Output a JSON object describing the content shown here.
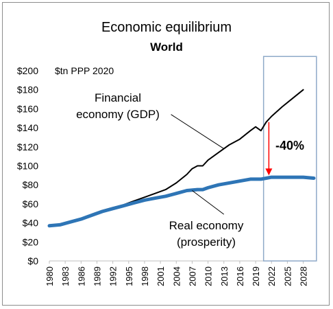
{
  "chart_data": {
    "type": "line",
    "title": "Economic equilibrium",
    "subtitle": "World",
    "unit_note": "$tn PPP 2020",
    "ylim": [
      0,
      200
    ],
    "y_ticks": [
      "$0",
      "$20",
      "$40",
      "$60",
      "$80",
      "$100",
      "$120",
      "$140",
      "$160",
      "$180",
      "$200"
    ],
    "y_tick_values": [
      0,
      20,
      40,
      60,
      80,
      100,
      120,
      140,
      160,
      180,
      200
    ],
    "x_ticks": [
      "1980",
      "1983",
      "1986",
      "1989",
      "1992",
      "1995",
      "1998",
      "2001",
      "2004",
      "2007",
      "2010",
      "2013",
      "2016",
      "2019",
      "2022",
      "2025",
      "2028"
    ],
    "x_tick_values": [
      1980,
      1983,
      1986,
      1989,
      1992,
      1995,
      1998,
      2001,
      2004,
      2007,
      2010,
      2013,
      2016,
      2019,
      2022,
      2025,
      2028
    ],
    "xlim": [
      1980,
      2030
    ],
    "series": [
      {
        "key": "gdp",
        "color": "#000000",
        "points": [
          [
            1980,
            37
          ],
          [
            1982,
            38
          ],
          [
            1984,
            41
          ],
          [
            1986,
            44
          ],
          [
            1988,
            49
          ],
          [
            1990,
            53
          ],
          [
            1992,
            56
          ],
          [
            1994,
            59
          ],
          [
            1996,
            63
          ],
          [
            1998,
            67
          ],
          [
            2000,
            71
          ],
          [
            2002,
            75
          ],
          [
            2004,
            82
          ],
          [
            2006,
            91
          ],
          [
            2007,
            97
          ],
          [
            2008,
            100
          ],
          [
            2009,
            100
          ],
          [
            2010,
            106
          ],
          [
            2012,
            114
          ],
          [
            2014,
            122
          ],
          [
            2016,
            128
          ],
          [
            2018,
            137
          ],
          [
            2019,
            141
          ],
          [
            2020,
            137
          ],
          [
            2021,
            146
          ],
          [
            2022,
            152
          ],
          [
            2024,
            162
          ],
          [
            2026,
            171
          ],
          [
            2028,
            180
          ]
        ]
      },
      {
        "key": "real",
        "color": "#2e75b6",
        "points": [
          [
            1980,
            37
          ],
          [
            1982,
            38
          ],
          [
            1984,
            41
          ],
          [
            1986,
            44
          ],
          [
            1988,
            48
          ],
          [
            1990,
            52
          ],
          [
            1992,
            55
          ],
          [
            1994,
            58
          ],
          [
            1996,
            61
          ],
          [
            1998,
            64
          ],
          [
            2000,
            66
          ],
          [
            2002,
            68
          ],
          [
            2004,
            71
          ],
          [
            2006,
            74
          ],
          [
            2008,
            75
          ],
          [
            2009,
            75
          ],
          [
            2010,
            77
          ],
          [
            2012,
            80
          ],
          [
            2014,
            82
          ],
          [
            2016,
            84
          ],
          [
            2018,
            86
          ],
          [
            2020,
            86
          ],
          [
            2021,
            87
          ],
          [
            2022,
            88
          ],
          [
            2024,
            88
          ],
          [
            2026,
            88
          ],
          [
            2028,
            88
          ],
          [
            2030,
            87
          ]
        ]
      }
    ],
    "annotations": {
      "gdp_label": [
        "Financial",
        "economy (GDP)"
      ],
      "real_label": [
        "Real economy",
        "(prosperity)"
      ],
      "gap_label": "-40%",
      "gap_arrow": {
        "x": 2021.5,
        "from": 146,
        "to": 90,
        "color": "#ff0000"
      },
      "highlight_box": {
        "x0": 2020.5,
        "x1": 2030.5,
        "y0": 0,
        "y1": 215,
        "color": "#8ea9c8"
      },
      "gdp_leader": {
        "from": [
          2003,
          154
        ],
        "to": [
          2013,
          118
        ]
      },
      "real_leader": {
        "from": [
          2007,
          74
        ],
        "to": [
          2013,
          49
        ]
      }
    }
  }
}
